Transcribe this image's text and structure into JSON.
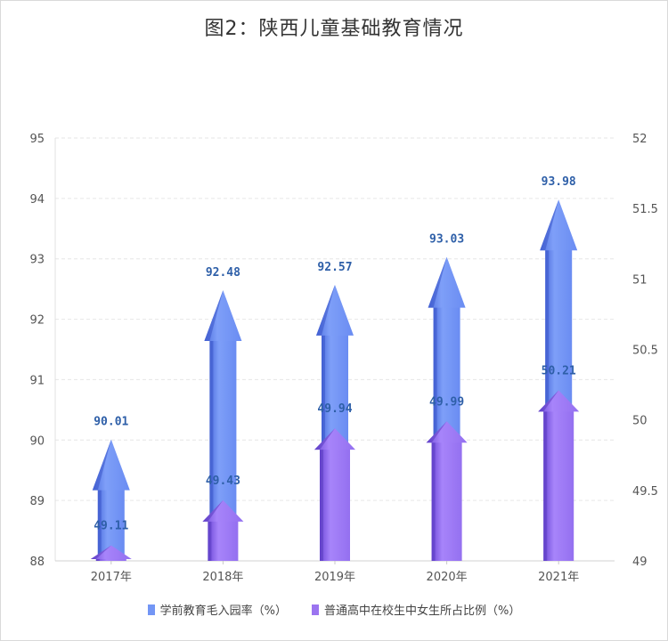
{
  "title": "图2：陕西儿童基础教育情况",
  "chart_data": {
    "type": "bar",
    "categories": [
      "2017年",
      "2018年",
      "2019年",
      "2020年",
      "2021年"
    ],
    "series": [
      {
        "name": "学前教育毛入园率（%）",
        "axis": "left",
        "color": "#7396f5",
        "values": [
          90.01,
          92.48,
          92.57,
          93.03,
          93.98
        ]
      },
      {
        "name": "普通高中在校生中女生所占比例（%）",
        "axis": "right",
        "color": "#9b74f0",
        "values": [
          49.11,
          49.43,
          49.94,
          49.99,
          50.21
        ]
      }
    ],
    "y_left": {
      "min": 88,
      "max": 95,
      "ticks": [
        "88",
        "89",
        "90",
        "91",
        "92",
        "93",
        "94",
        "95"
      ]
    },
    "y_right": {
      "min": 49,
      "max": 52,
      "ticks": [
        "49",
        "49.5",
        "50",
        "50.5",
        "51",
        "51.5",
        "52"
      ]
    },
    "data_labels": {
      "left": [
        "90.01",
        "92.48",
        "92.57",
        "93.03",
        "93.98"
      ],
      "right": [
        "49.11",
        "49.43",
        "49.94",
        "49.99",
        "50.21"
      ]
    },
    "grid": true,
    "legend_position": "bottom"
  },
  "legend": {
    "item1": "学前教育毛入园率（%）",
    "item2": "普通高中在校生中女生所占比例（%）"
  }
}
